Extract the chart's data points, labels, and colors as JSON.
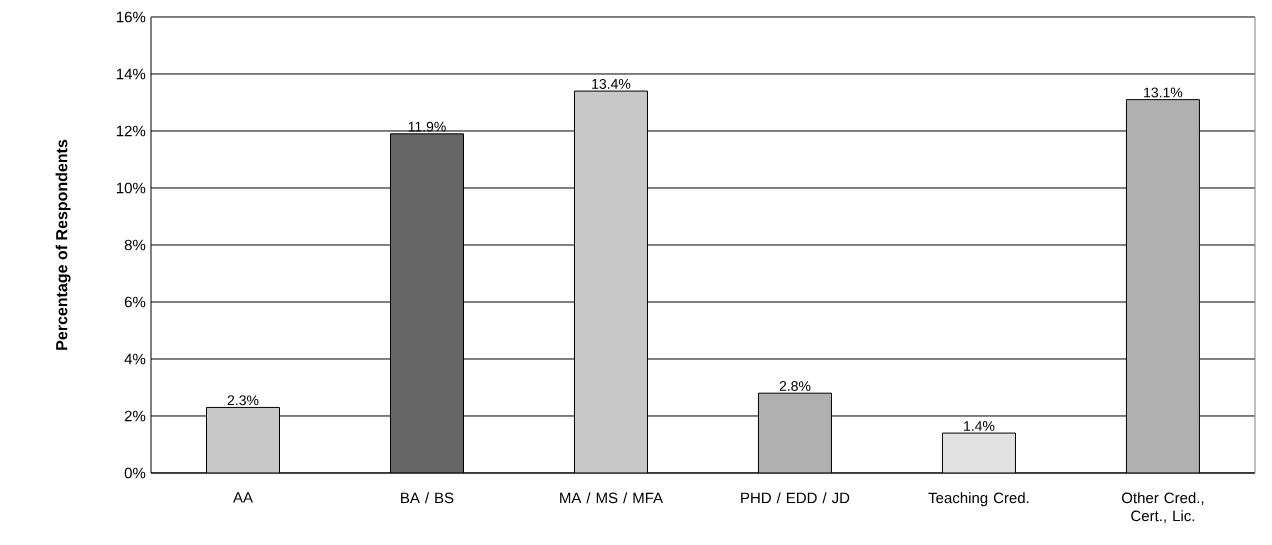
{
  "chart_data": {
    "type": "bar",
    "ylabel": "Percentage of Respondents",
    "categories": [
      "AA",
      "BA / BS",
      "MA / MS / MFA",
      "PHD / EDD / JD",
      "Teaching Cred.",
      "Other Cred., Cert., Lic."
    ],
    "values": [
      2.3,
      11.9,
      13.4,
      2.8,
      1.4,
      13.1
    ],
    "value_labels": [
      "2.3%",
      "11.9%",
      "13.4%",
      "2.8%",
      "1.4%",
      "13.1%"
    ],
    "colors": [
      "#c8c8c8",
      "#666666",
      "#c8c8c8",
      "#b0b0b0",
      "#e2e2e2",
      "#b0b0b0"
    ],
    "ylim": [
      0,
      16
    ],
    "yticks": [
      {
        "value": 0,
        "label": "0%"
      },
      {
        "value": 2,
        "label": "2%"
      },
      {
        "value": 4,
        "label": "4%"
      },
      {
        "value": 6,
        "label": "6%"
      },
      {
        "value": 8,
        "label": "8%"
      },
      {
        "value": 10,
        "label": "10%"
      },
      {
        "value": 12,
        "label": "12%"
      },
      {
        "value": 14,
        "label": "14%"
      },
      {
        "value": 16,
        "label": "16%"
      }
    ],
    "grid": "y"
  }
}
